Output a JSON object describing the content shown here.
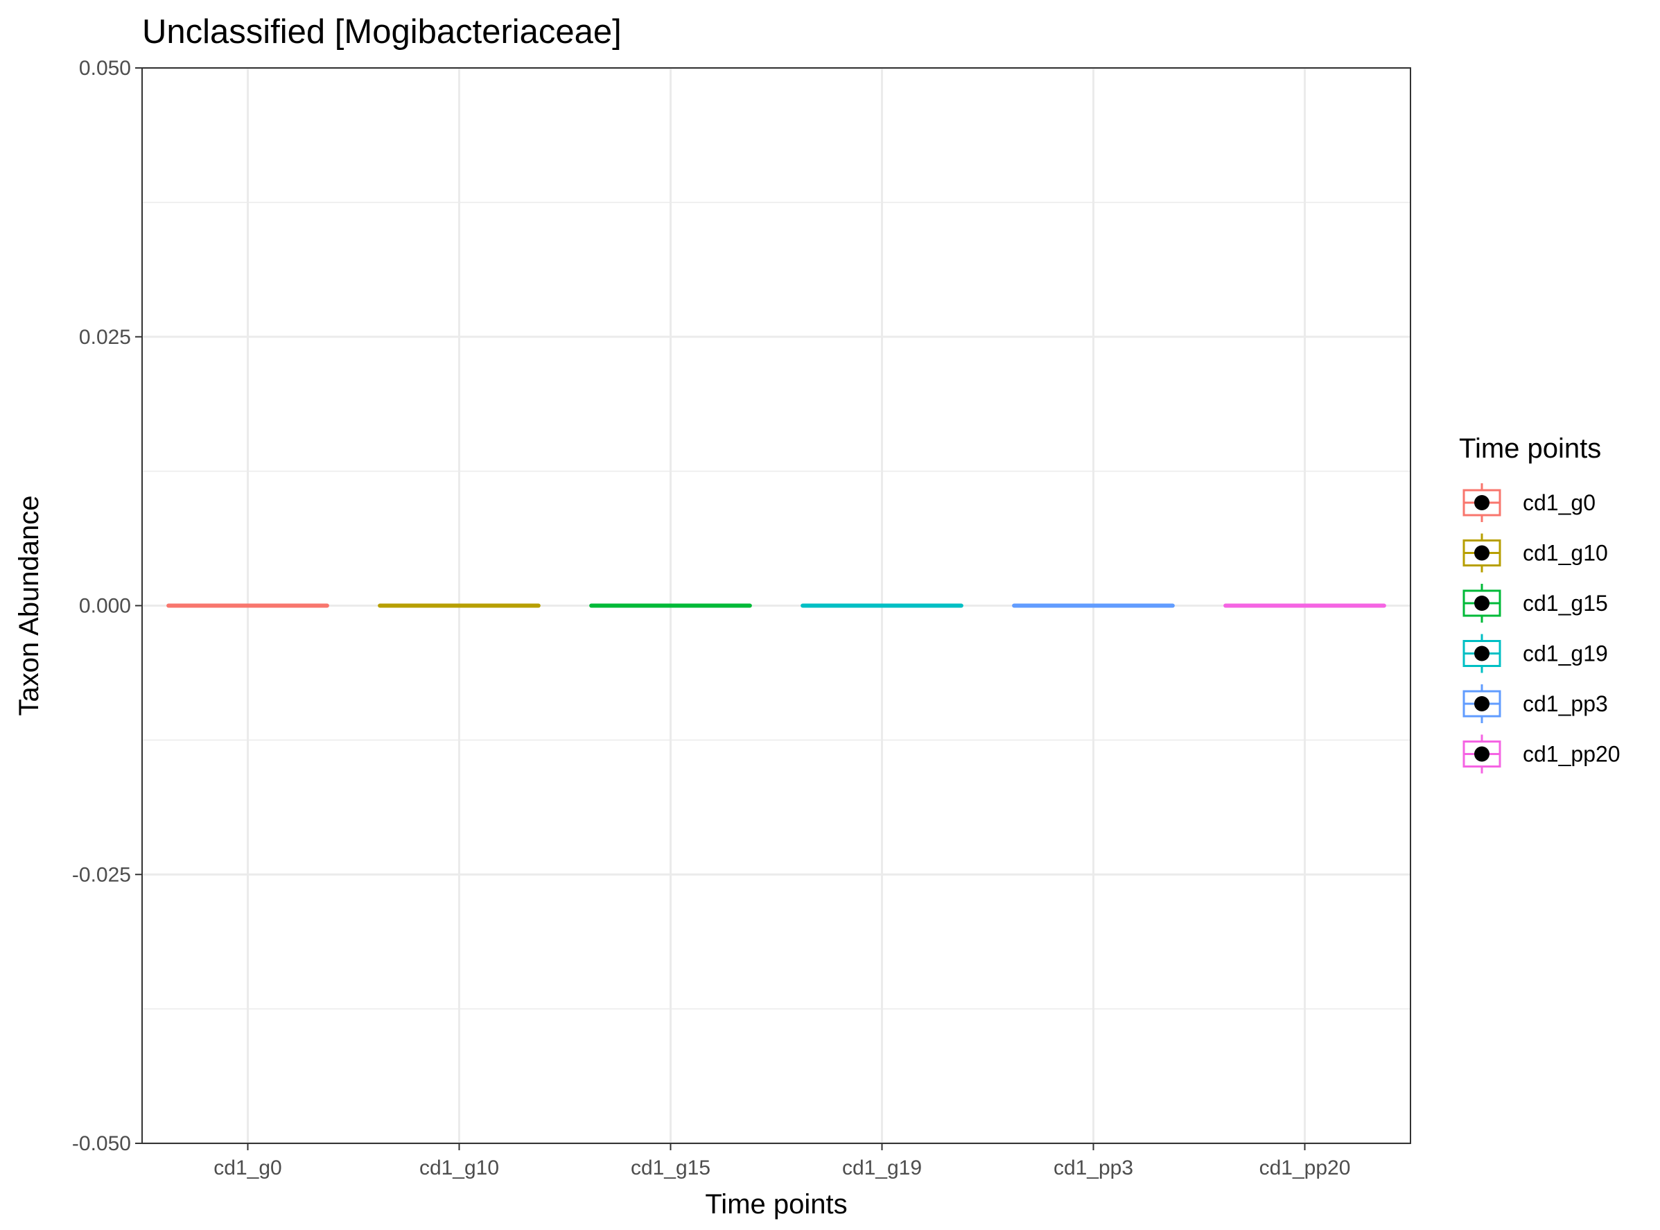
{
  "chart_data": {
    "type": "box",
    "title": "Unclassified [Mogibacteriaceae]",
    "xlabel": "Time points",
    "ylabel": "Taxon Abundance",
    "categories": [
      "cd1_g0",
      "cd1_g10",
      "cd1_g15",
      "cd1_g19",
      "cd1_pp3",
      "cd1_pp20"
    ],
    "ylim": [
      -0.05,
      0.05
    ],
    "yticks": [
      -0.05,
      -0.025,
      0.0,
      0.025,
      0.05
    ],
    "ytick_labels": [
      "-0.050",
      "-0.025",
      "0.000",
      "0.025",
      "0.050"
    ],
    "series": [
      {
        "name": "cd1_g0",
        "color": "#F8766D",
        "values": [
          0,
          0,
          0,
          0,
          0
        ]
      },
      {
        "name": "cd1_g10",
        "color": "#B79F00",
        "values": [
          0,
          0,
          0,
          0,
          0
        ]
      },
      {
        "name": "cd1_g15",
        "color": "#00BA38",
        "values": [
          0,
          0,
          0,
          0,
          0
        ]
      },
      {
        "name": "cd1_g19",
        "color": "#00BFC4",
        "values": [
          0,
          0,
          0,
          0,
          0
        ]
      },
      {
        "name": "cd1_pp3",
        "color": "#619CFF",
        "values": [
          0,
          0,
          0,
          0,
          0
        ]
      },
      {
        "name": "cd1_pp20",
        "color": "#F564E3",
        "values": [
          0,
          0,
          0,
          0,
          0
        ]
      }
    ],
    "legend": {
      "title": "Time points",
      "position": "right",
      "items": [
        "cd1_g0",
        "cd1_g10",
        "cd1_g15",
        "cd1_g19",
        "cd1_pp3",
        "cd1_pp20"
      ]
    },
    "grid": true,
    "theme": "bw"
  }
}
